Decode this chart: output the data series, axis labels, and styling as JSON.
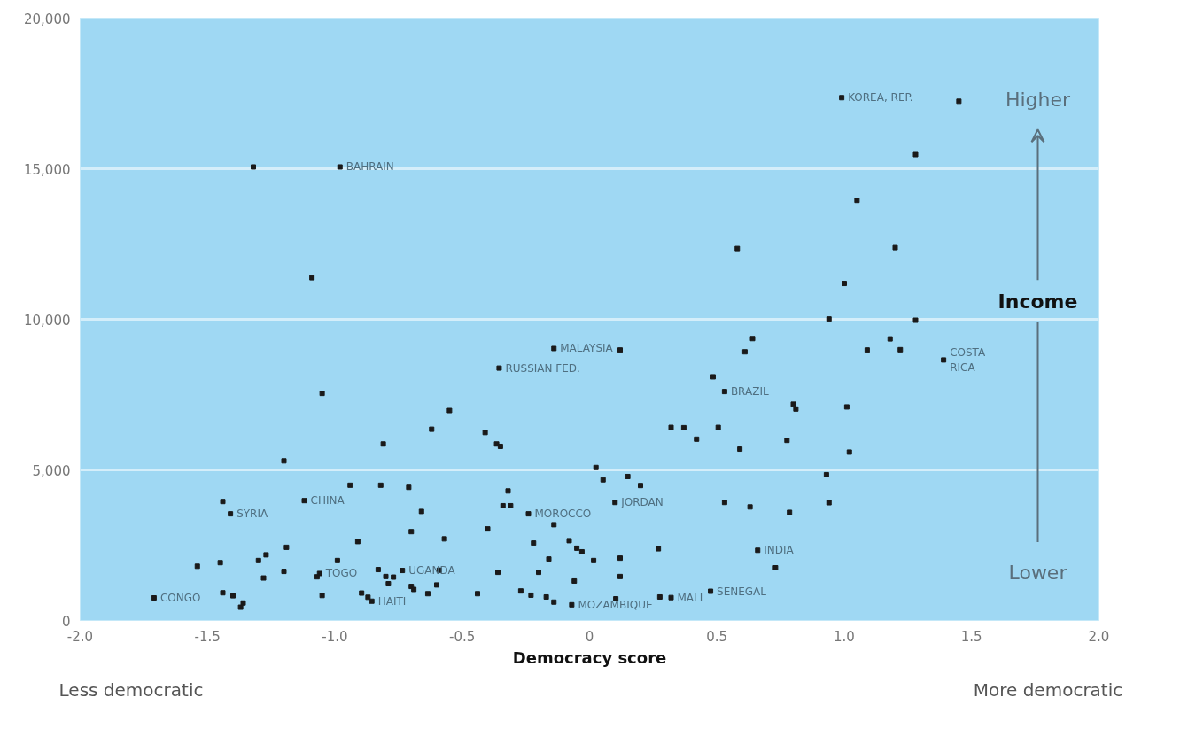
{
  "chart_data": {
    "type": "scatter",
    "xlabel": "Democracy score",
    "xlim": [
      -2.0,
      2.0
    ],
    "ylim": [
      0,
      20000
    ],
    "xticks": [
      {
        "value": -2,
        "label": "-2.0"
      },
      {
        "value": -1.5,
        "label": "-1.5"
      },
      {
        "value": -1,
        "label": "-1.0"
      },
      {
        "value": -0.5,
        "label": "-0.5"
      },
      0,
      0.5,
      {
        "value": 1,
        "label": "1.0"
      },
      1.5,
      {
        "value": 2,
        "label": "2.0"
      }
    ],
    "yticks": [
      0,
      {
        "value": 5000,
        "label": "5,000"
      },
      {
        "value": 10000,
        "label": "10,000"
      },
      {
        "value": 15000,
        "label": "15,000"
      },
      {
        "value": 20000,
        "label": "20,000"
      }
    ],
    "grid": "y",
    "marker": "square",
    "series": [
      {
        "color": "#1a1a1a",
        "x": [
          -1.32,
          -0.98,
          -1.09,
          -0.14,
          0.99,
          1.45,
          1.28,
          1.05,
          0.58,
          1.2,
          1.0,
          0.94,
          1.28,
          0.64,
          0.12,
          0.61,
          1.09,
          1.18,
          1.22,
          -0.355,
          -1.05,
          -0.55,
          -0.62,
          -0.41,
          -0.365,
          -0.35,
          -0.81,
          -1.2,
          0.025,
          0.053,
          -0.94,
          -0.82,
          -0.71,
          -0.32,
          -1.44,
          -1.12,
          -0.34,
          -0.31,
          -1.41,
          -0.66,
          -0.24,
          -0.14,
          -0.4,
          -0.7,
          -0.57,
          -0.91,
          -0.22,
          -0.08,
          -0.05,
          -0.03,
          -1.19,
          -1.27,
          -1.3,
          0.016,
          -0.16,
          -0.99,
          -1.45,
          -1.54,
          -0.83,
          -0.735,
          -0.59,
          -0.36,
          -0.2,
          -1.2,
          -1.06,
          -1.07,
          -0.8,
          -0.77,
          -0.79,
          -1.28,
          -0.6,
          -0.06,
          -0.7,
          -0.69,
          -0.635,
          -0.44,
          -0.27,
          -0.23,
          -0.17,
          -0.14,
          -0.07,
          -1.44,
          -1.4,
          -1.36,
          -1.37,
          -1.71,
          -1.05,
          -0.895,
          -0.87,
          -0.855,
          1.39,
          0.485,
          0.53,
          0.8,
          0.81,
          1.01,
          0.32,
          0.37,
          0.505,
          0.42,
          0.775,
          0.59,
          1.02,
          0.15,
          0.2,
          0.93,
          0.1,
          0.53,
          0.63,
          0.785,
          0.94,
          0.27,
          0.12,
          0.66,
          0.73,
          0.12,
          0.475,
          0.276,
          0.32,
          0.103
        ],
        "values": [
          15060,
          15060,
          11380,
          9030,
          17360,
          17240,
          15470,
          13950,
          12350,
          12380,
          11190,
          10010,
          9970,
          9360,
          8980,
          8920,
          8980,
          9350,
          8990,
          8380,
          7540,
          6970,
          6350,
          6240,
          5860,
          5780,
          5860,
          5300,
          5080,
          4670,
          4490,
          4490,
          4420,
          4300,
          3950,
          3980,
          3810,
          3810,
          3540,
          3620,
          3540,
          3180,
          3040,
          2950,
          2710,
          2620,
          2570,
          2650,
          2400,
          2280,
          2430,
          2180,
          1990,
          1990,
          2040,
          1990,
          1920,
          1800,
          1690,
          1660,
          1670,
          1600,
          1600,
          1630,
          1560,
          1450,
          1460,
          1440,
          1220,
          1410,
          1180,
          1310,
          1130,
          1030,
          890,
          890,
          980,
          840,
          780,
          610,
          520,
          920,
          820,
          580,
          440,
          750,
          830,
          910,
          770,
          640,
          8650,
          8090,
          7600,
          7180,
          7020,
          7090,
          6410,
          6400,
          6410,
          6020,
          5980,
          5690,
          5590,
          4780,
          4480,
          4840,
          3920,
          3920,
          3770,
          3590,
          3910,
          2380,
          2070,
          2330,
          1750,
          1460,
          970,
          780,
          760,
          720
        ]
      }
    ],
    "annotations": [
      {
        "text": "KOREA, REP.",
        "x": 0.99,
        "y": 17360
      },
      {
        "text": "BAHRAIN",
        "x": -0.98,
        "y": 15060
      },
      {
        "text": "MALAYSIA",
        "x": -0.14,
        "y": 9030
      },
      {
        "text": "RUSSIAN FED.",
        "x": -0.355,
        "y": 8380
      },
      {
        "text": "COSTA\nRICA",
        "x": 1.39,
        "y": 8650
      },
      {
        "text": "BRAZIL",
        "x": 0.53,
        "y": 7600
      },
      {
        "text": "JORDAN",
        "x": 0.1,
        "y": 3920
      },
      {
        "text": "CHINA",
        "x": -1.12,
        "y": 3980
      },
      {
        "text": "SYRIA",
        "x": -1.41,
        "y": 3540
      },
      {
        "text": "MOROCCO",
        "x": -0.24,
        "y": 3540
      },
      {
        "text": "UGANDA",
        "x": -0.735,
        "y": 1660
      },
      {
        "text": "INDIA",
        "x": 0.66,
        "y": 2330
      },
      {
        "text": "TOGO",
        "x": -1.06,
        "y": 1560
      },
      {
        "text": "CONGO",
        "x": -1.71,
        "y": 750
      },
      {
        "text": "SENEGAL",
        "x": 0.475,
        "y": 970
      },
      {
        "text": "HAITI",
        "x": -0.855,
        "y": 640
      },
      {
        "text": "MALI",
        "x": 0.32,
        "y": 760
      },
      {
        "text": "MOZAMBIQUE",
        "x": -0.07,
        "y": 520
      },
      "Higher",
      "Income",
      "Lower",
      "Less democratic",
      "More democratic"
    ]
  }
}
